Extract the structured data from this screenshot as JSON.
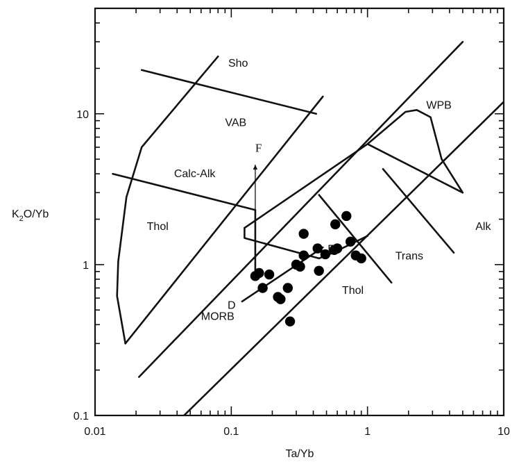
{
  "chart_data": {
    "type": "scatter",
    "title": "",
    "xlabel": "Ta/Yb",
    "ylabel_main": "K",
    "ylabel_sub": "2",
    "ylabel_tail": "O/Yb",
    "xscale": "log",
    "yscale": "log",
    "xlim": [
      0.01,
      10
    ],
    "ylim": [
      0.1,
      50
    ],
    "grid": false,
    "xticks": [
      {
        "value": 0.01,
        "label": "0.01"
      },
      {
        "value": 0.1,
        "label": "0.1"
      },
      {
        "value": 1,
        "label": "1"
      },
      {
        "value": 10,
        "label": "10"
      }
    ],
    "yticks": [
      {
        "value": 0.1,
        "label": "0.1"
      },
      {
        "value": 1,
        "label": "1"
      },
      {
        "value": 10,
        "label": "10"
      }
    ],
    "points": [
      {
        "x": 0.15,
        "y": 0.84
      },
      {
        "x": 0.16,
        "y": 0.88
      },
      {
        "x": 0.19,
        "y": 0.86
      },
      {
        "x": 0.17,
        "y": 0.7
      },
      {
        "x": 0.22,
        "y": 0.61
      },
      {
        "x": 0.23,
        "y": 0.59
      },
      {
        "x": 0.26,
        "y": 0.7
      },
      {
        "x": 0.27,
        "y": 0.42
      },
      {
        "x": 0.3,
        "y": 1.0
      },
      {
        "x": 0.32,
        "y": 0.97
      },
      {
        "x": 0.34,
        "y": 1.15
      },
      {
        "x": 0.34,
        "y": 1.6
      },
      {
        "x": 0.43,
        "y": 1.28
      },
      {
        "x": 0.44,
        "y": 0.91
      },
      {
        "x": 0.49,
        "y": 1.17
      },
      {
        "x": 0.57,
        "y": 1.25
      },
      {
        "x": 0.58,
        "y": 1.85
      },
      {
        "x": 0.6,
        "y": 1.28
      },
      {
        "x": 0.7,
        "y": 2.1
      },
      {
        "x": 0.75,
        "y": 1.42
      },
      {
        "x": 0.82,
        "y": 1.15
      },
      {
        "x": 0.9,
        "y": 1.1
      }
    ],
    "boundaries": [
      [
        [
          0.0167,
          0.3
        ],
        [
          0.0145,
          0.62
        ],
        [
          0.0148,
          1.05
        ],
        [
          0.017,
          2.8
        ],
        [
          0.022,
          6
        ],
        [
          0.08,
          24
        ]
      ],
      [
        [
          0.0167,
          0.3
        ],
        [
          0.47,
          13
        ]
      ],
      [
        [
          0.021,
          0.18
        ],
        [
          5,
          30
        ]
      ],
      [
        [
          0.045,
          0.1
        ],
        [
          10,
          12
        ]
      ],
      [
        [
          0.022,
          19.5
        ],
        [
          0.42,
          10
        ]
      ],
      [
        [
          0.0135,
          4.0
        ],
        [
          0.15,
          2.3
        ]
      ],
      [
        [
          0.15,
          0.9
        ],
        [
          0.15,
          2.3
        ]
      ],
      [
        [
          0.12,
          0.57
        ],
        [
          0.47,
          1.3
        ]
      ],
      [
        [
          0.125,
          1.75
        ],
        [
          0.125,
          1.5
        ],
        [
          0.44,
          1.1
        ],
        [
          0.56,
          1.2
        ],
        [
          1.0,
          1.55
        ]
      ],
      [
        [
          0.125,
          1.75
        ],
        [
          1.0,
          6.3
        ],
        [
          1.9,
          10.3
        ],
        [
          2.3,
          10.6
        ],
        [
          2.9,
          9.5
        ],
        [
          3.5,
          5.0
        ],
        [
          5,
          3.0
        ],
        [
          1.0,
          6.3
        ]
      ],
      [
        [
          0.44,
          2.9
        ],
        [
          1.5,
          0.76
        ]
      ],
      [
        [
          1.3,
          4.3
        ],
        [
          4.3,
          1.2
        ]
      ]
    ],
    "arrows": [
      {
        "from": [
          0.15,
          0.9
        ],
        "to": [
          0.15,
          4.6
        ]
      },
      {
        "from": [
          0.12,
          0.57
        ],
        "to": [
          0.47,
          1.3
        ]
      }
    ],
    "annotations": [
      {
        "text": "Sho",
        "x": 0.095,
        "y": 20.5
      },
      {
        "text": "VAB",
        "x": 0.09,
        "y": 8.3
      },
      {
        "text": "Calc-Alk",
        "x": 0.038,
        "y": 3.8
      },
      {
        "text": "Thol",
        "x": 0.024,
        "y": 1.7
      },
      {
        "text": "WPB",
        "x": 2.7,
        "y": 10.8
      },
      {
        "text": "Alk",
        "x": 6.2,
        "y": 1.7
      },
      {
        "text": "Trans",
        "x": 1.6,
        "y": 1.08
      },
      {
        "text": "Thol",
        "x": 0.65,
        "y": 0.64
      },
      {
        "text": "MORB",
        "x": 0.06,
        "y": 0.43
      },
      {
        "text": "D",
        "x": 0.094,
        "y": 0.51
      },
      {
        "text": "E",
        "x": 0.51,
        "y": 1.2
      },
      {
        "text": "F",
        "x": 0.15,
        "y": 5.6
      }
    ]
  }
}
